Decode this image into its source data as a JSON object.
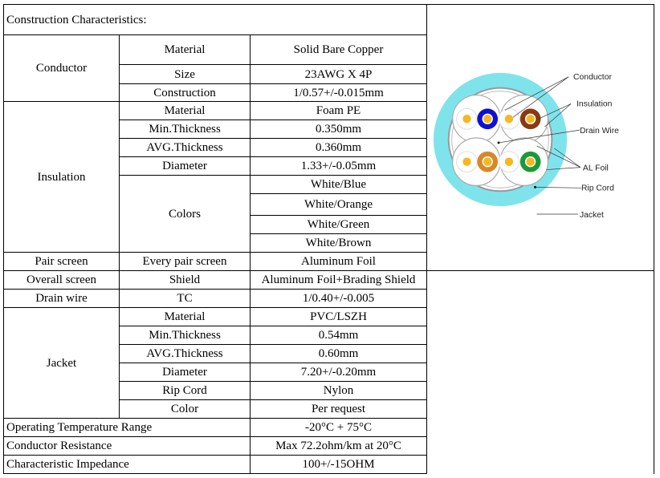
{
  "title": "Construction Characteristics:",
  "conductor": {
    "label": "Conductor",
    "rows": [
      [
        "Material",
        "Solid Bare Copper"
      ],
      [
        "Size",
        "23AWG X 4P"
      ],
      [
        "Construction",
        "1/0.57+/-0.015mm"
      ]
    ]
  },
  "insulation": {
    "label": "Insulation",
    "rows": [
      [
        "Material",
        "Foam PE"
      ],
      [
        "Min.Thickness",
        "0.350mm"
      ],
      [
        "AVG.Thickness",
        "0.360mm"
      ],
      [
        "Diameter",
        "1.33+/-0.05mm"
      ]
    ],
    "colors_label": "Colors",
    "colors": [
      "White/Blue",
      "White/Orange",
      "White/Green",
      "White/Brown"
    ]
  },
  "pair_screen": [
    "Pair screen",
    "Every pair screen",
    "Aluminum Foil"
  ],
  "overall_screen": [
    "Overall screen",
    "Shield",
    "Aluminum Foil+Brading Shield"
  ],
  "drain_wire": [
    "Drain wire",
    "TC",
    "1/0.40+/-0.005"
  ],
  "jacket": {
    "label": "Jacket",
    "rows": [
      [
        "Material",
        "PVC/LSZH"
      ],
      [
        "Min.Thickness",
        "0.54mm"
      ],
      [
        "AVG.Thickness",
        "0.60mm"
      ],
      [
        "Diameter",
        "7.20+/-0.20mm"
      ],
      [
        "Rip Cord",
        "Nylon"
      ],
      [
        "Color",
        "Per request"
      ]
    ]
  },
  "bottom": [
    [
      "Operating Temperature Range",
      "-20°C + 75°C"
    ],
    [
      "Conductor Resistance",
      "Max 72.2ohm/km at 20°C"
    ],
    [
      "Characteristic Impedance",
      "100+/-15OHM"
    ]
  ],
  "diagram_labels": [
    "Conductor",
    "Insulation",
    "Drain Wire",
    "AL Foil",
    "Rip Cord",
    "Jacket"
  ],
  "colors": {
    "jacket_diagram": "#7fe3ec",
    "blue": "#1010d0",
    "brown": "#8a3a10",
    "orange": "#d8882a",
    "green": "#1a9a3a",
    "conductor": "#f5b820",
    "cable": "#2f9a3c"
  }
}
